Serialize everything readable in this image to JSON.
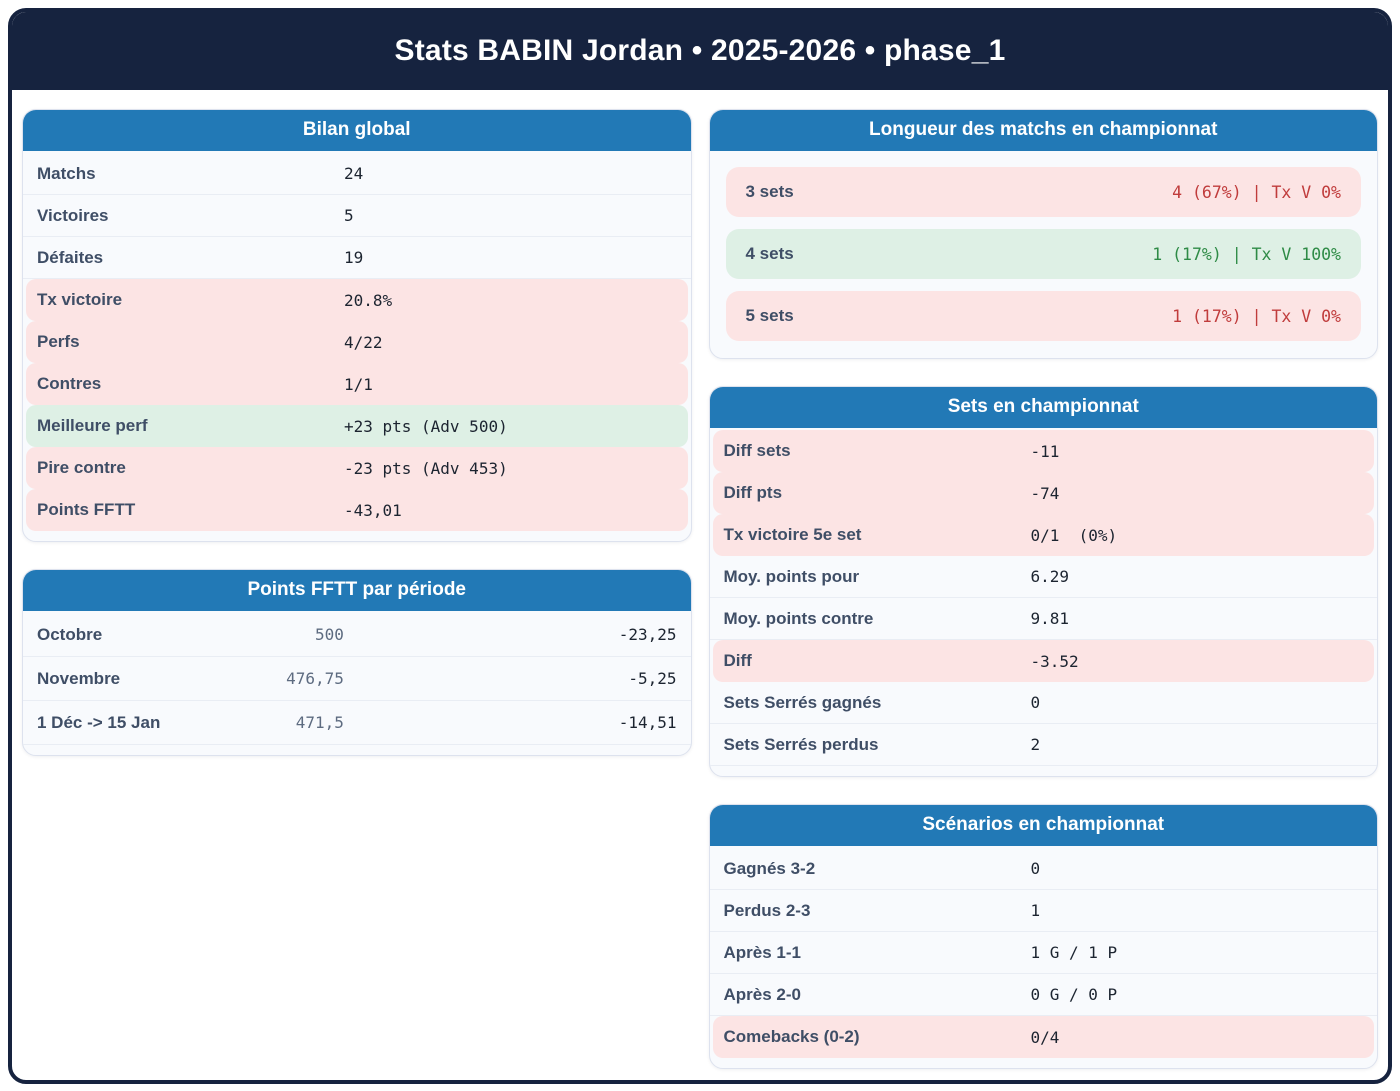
{
  "header": {
    "title": "Stats BABIN Jordan • 2025-2026 • phase_1"
  },
  "colors": {
    "page_border": "#16233f",
    "card_header_blue": "#2279b6",
    "negative_bg": "#fce4e4",
    "positive_bg": "#def0e5",
    "negative_text": "#c03c3c",
    "positive_text": "#2e8b46"
  },
  "cards": {
    "bilan": {
      "title": "Bilan global",
      "rows": [
        {
          "label": "Matchs",
          "value": "24",
          "tone": "normal"
        },
        {
          "label": "Victoires",
          "value": "5",
          "tone": "normal"
        },
        {
          "label": "Défaites",
          "value": "19",
          "tone": "normal"
        },
        {
          "label": "Tx victoire",
          "value": "20.8%",
          "tone": "bad"
        },
        {
          "label": "Perfs",
          "value": "4/22",
          "tone": "bad"
        },
        {
          "label": "Contres",
          "value": "1/1",
          "tone": "bad"
        },
        {
          "label": "Meilleure perf",
          "value": "+23 pts (Adv 500)",
          "tone": "good"
        },
        {
          "label": "Pire contre",
          "value": "-23 pts (Adv 453)",
          "tone": "bad"
        },
        {
          "label": "Points FFTT",
          "value": "-43,01",
          "tone": "bad"
        }
      ]
    },
    "points_periode": {
      "title": "Points FFTT par période",
      "rows": [
        {
          "label": "Octobre",
          "start": "500",
          "delta": "-23,25"
        },
        {
          "label": "Novembre",
          "start": "476,75",
          "delta": "-5,25"
        },
        {
          "label": "1 Déc -> 15 Jan",
          "start": "471,5",
          "delta": "-14,51"
        }
      ]
    },
    "longueur": {
      "title": "Longueur des matchs en championnat",
      "rows": [
        {
          "label": "3 sets",
          "value": "4 (67%) | Tx V 0%",
          "tone": "bad"
        },
        {
          "label": "4 sets",
          "value": "1 (17%) | Tx V 100%",
          "tone": "good"
        },
        {
          "label": "5 sets",
          "value": "1 (17%) | Tx V 0%",
          "tone": "bad"
        }
      ]
    },
    "sets": {
      "title": "Sets en championnat",
      "rows": [
        {
          "label": "Diff sets",
          "value": "-11",
          "tone": "bad"
        },
        {
          "label": "Diff pts",
          "value": "-74",
          "tone": "bad"
        },
        {
          "label": "Tx victoire 5e set",
          "value": "0/1  (0%)",
          "tone": "bad"
        },
        {
          "label": "Moy. points pour",
          "value": "6.29",
          "tone": "normal"
        },
        {
          "label": "Moy. points contre",
          "value": "9.81",
          "tone": "normal"
        },
        {
          "label": "Diff",
          "value": "-3.52",
          "tone": "bad"
        },
        {
          "label": "Sets Serrés gagnés",
          "value": "0",
          "tone": "normal"
        },
        {
          "label": "Sets Serrés perdus",
          "value": "2",
          "tone": "normal"
        }
      ]
    },
    "scenarios": {
      "title": "Scénarios en championnat",
      "rows": [
        {
          "label": "Gagnés 3-2",
          "value": "0",
          "tone": "normal"
        },
        {
          "label": "Perdus 2-3",
          "value": "1",
          "tone": "normal"
        },
        {
          "label": "Après 1-1",
          "value": "1 G / 1 P",
          "tone": "normal"
        },
        {
          "label": "Après 2-0",
          "value": "0 G / 0 P",
          "tone": "normal"
        },
        {
          "label": "Comebacks (0-2)",
          "value": "0/4",
          "tone": "bad"
        }
      ]
    }
  }
}
